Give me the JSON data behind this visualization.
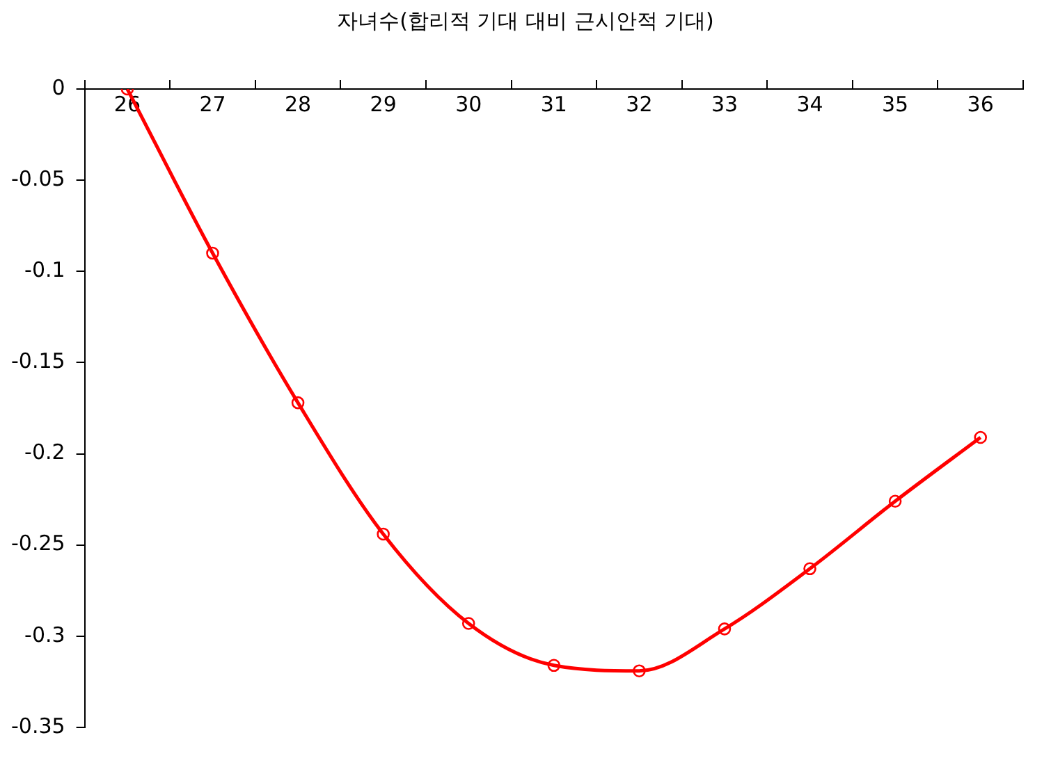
{
  "chart_data": {
    "type": "line",
    "title": "자녀수(합리적 기대 대비 근시안적 기대)",
    "categories": [
      "26",
      "27",
      "28",
      "29",
      "30",
      "31",
      "32",
      "33",
      "34",
      "35",
      "36"
    ],
    "series": [
      {
        "color": "#ff0000",
        "values": [
          0,
          -0.09,
          -0.172,
          -0.244,
          -0.293,
          -0.316,
          -0.319,
          -0.296,
          -0.263,
          -0.226,
          -0.191
        ]
      }
    ],
    "ylim": [
      -0.35,
      0
    ],
    "yticks": [
      0,
      -0.05,
      -0.1,
      -0.15,
      -0.2,
      -0.25,
      -0.3,
      -0.35
    ],
    "marker": "circle",
    "line_style": "solid",
    "grid": false
  }
}
